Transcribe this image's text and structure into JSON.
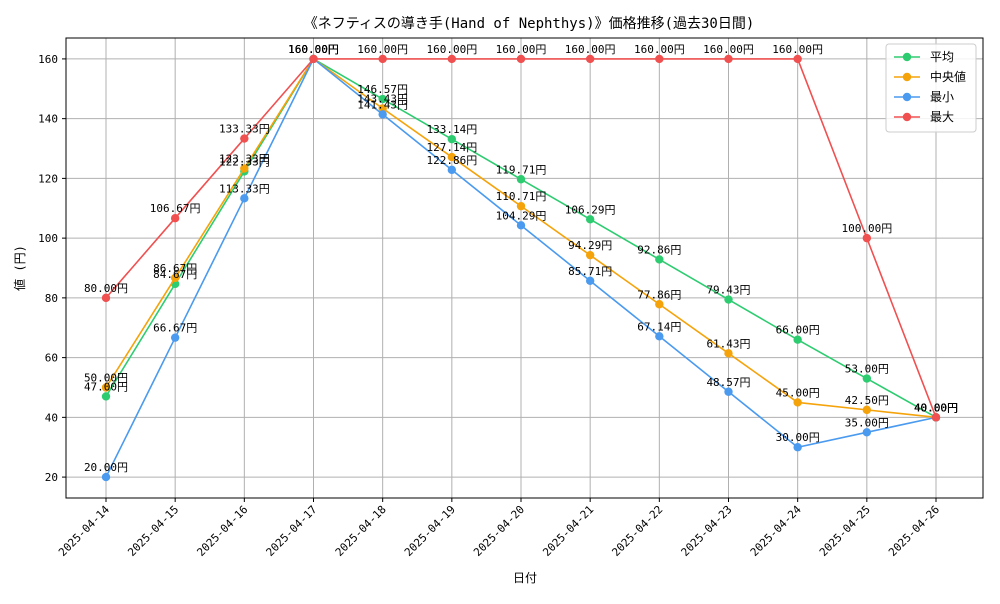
{
  "chart_data": {
    "type": "line",
    "title": "《ネフティスの導き手(Hand of Nephthys)》価格推移(過去30日間)",
    "xlabel": "日付",
    "ylabel": "値 (円)",
    "ylim": [
      13,
      167
    ],
    "yticks": [
      20,
      40,
      60,
      80,
      100,
      120,
      140,
      160
    ],
    "grid": true,
    "legend_position": "top-right",
    "label_suffix": "円",
    "x": [
      "2025-04-14",
      "2025-04-15",
      "2025-04-16",
      "2025-04-17",
      "2025-04-18",
      "2025-04-19",
      "2025-04-20",
      "2025-04-21",
      "2025-04-22",
      "2025-04-23",
      "2025-04-24",
      "2025-04-25",
      "2025-04-26"
    ],
    "series": [
      {
        "name": "平均",
        "color": "#2ecc71",
        "values": [
          47.0,
          84.67,
          122.33,
          160.0,
          146.57,
          133.14,
          119.71,
          106.29,
          92.86,
          79.43,
          66.0,
          53.0,
          40.0
        ]
      },
      {
        "name": "中央値",
        "color": "#f5a30a",
        "values": [
          50.0,
          86.67,
          123.33,
          160.0,
          143.43,
          127.14,
          110.71,
          94.29,
          77.86,
          61.43,
          45.0,
          42.5,
          40.0
        ]
      },
      {
        "name": "最小",
        "color": "#4a9aef",
        "values": [
          20.0,
          66.67,
          113.33,
          160.0,
          141.43,
          122.86,
          104.29,
          85.71,
          67.14,
          48.57,
          30.0,
          35.0,
          40.0
        ]
      },
      {
        "name": "最大",
        "color": "#f05050",
        "values": [
          80.0,
          106.67,
          133.33,
          160.0,
          160.0,
          160.0,
          160.0,
          160.0,
          160.0,
          160.0,
          160.0,
          100.0,
          40.0
        ]
      }
    ]
  }
}
